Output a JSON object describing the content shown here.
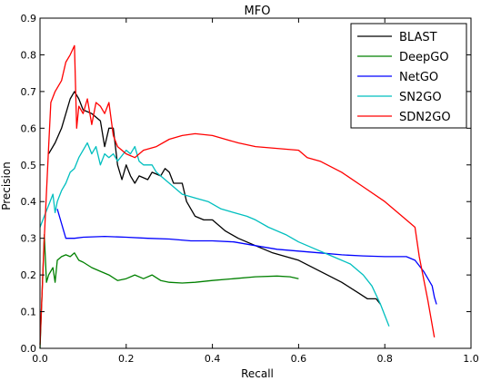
{
  "chart_data": {
    "type": "line",
    "title": "MFO",
    "xlabel": "Recall",
    "ylabel": "Precision",
    "xlim": [
      0.0,
      1.0
    ],
    "ylim": [
      0.0,
      0.9
    ],
    "xticks": [
      "0.0",
      "0.2",
      "0.4",
      "0.6",
      "0.8",
      "1.0"
    ],
    "yticks": [
      "0.0",
      "0.1",
      "0.2",
      "0.3",
      "0.4",
      "0.5",
      "0.6",
      "0.7",
      "0.8",
      "0.9"
    ],
    "grid": false,
    "legend_position": "top-right",
    "series": [
      {
        "name": "BLAST",
        "color": "#000000",
        "points": [
          [
            0.02,
            0.53
          ],
          [
            0.035,
            0.56
          ],
          [
            0.05,
            0.6
          ],
          [
            0.07,
            0.68
          ],
          [
            0.08,
            0.7
          ],
          [
            0.09,
            0.68
          ],
          [
            0.1,
            0.65
          ],
          [
            0.12,
            0.64
          ],
          [
            0.14,
            0.62
          ],
          [
            0.15,
            0.55
          ],
          [
            0.16,
            0.6
          ],
          [
            0.17,
            0.6
          ],
          [
            0.18,
            0.5
          ],
          [
            0.19,
            0.46
          ],
          [
            0.2,
            0.5
          ],
          [
            0.21,
            0.47
          ],
          [
            0.22,
            0.45
          ],
          [
            0.23,
            0.47
          ],
          [
            0.25,
            0.46
          ],
          [
            0.26,
            0.48
          ],
          [
            0.28,
            0.47
          ],
          [
            0.29,
            0.49
          ],
          [
            0.3,
            0.48
          ],
          [
            0.31,
            0.45
          ],
          [
            0.33,
            0.45
          ],
          [
            0.34,
            0.4
          ],
          [
            0.36,
            0.36
          ],
          [
            0.38,
            0.35
          ],
          [
            0.4,
            0.35
          ],
          [
            0.43,
            0.32
          ],
          [
            0.46,
            0.3
          ],
          [
            0.5,
            0.28
          ],
          [
            0.54,
            0.26
          ],
          [
            0.6,
            0.24
          ],
          [
            0.65,
            0.21
          ],
          [
            0.7,
            0.18
          ],
          [
            0.74,
            0.15
          ],
          [
            0.76,
            0.135
          ],
          [
            0.78,
            0.135
          ],
          [
            0.79,
            0.12
          ]
        ]
      },
      {
        "name": "DeepGO",
        "color": "#008000",
        "points": [
          [
            0.0,
            0.0
          ],
          [
            0.01,
            0.31
          ],
          [
            0.015,
            0.18
          ],
          [
            0.02,
            0.2
          ],
          [
            0.03,
            0.22
          ],
          [
            0.035,
            0.18
          ],
          [
            0.04,
            0.24
          ],
          [
            0.05,
            0.25
          ],
          [
            0.06,
            0.255
          ],
          [
            0.07,
            0.25
          ],
          [
            0.08,
            0.26
          ],
          [
            0.09,
            0.24
          ],
          [
            0.1,
            0.235
          ],
          [
            0.12,
            0.22
          ],
          [
            0.14,
            0.21
          ],
          [
            0.16,
            0.2
          ],
          [
            0.18,
            0.185
          ],
          [
            0.2,
            0.19
          ],
          [
            0.22,
            0.2
          ],
          [
            0.24,
            0.19
          ],
          [
            0.26,
            0.2
          ],
          [
            0.28,
            0.185
          ],
          [
            0.3,
            0.18
          ],
          [
            0.33,
            0.178
          ],
          [
            0.36,
            0.18
          ],
          [
            0.4,
            0.185
          ],
          [
            0.45,
            0.19
          ],
          [
            0.5,
            0.195
          ],
          [
            0.55,
            0.197
          ],
          [
            0.58,
            0.195
          ],
          [
            0.6,
            0.19
          ]
        ]
      },
      {
        "name": "NetGO",
        "color": "#0000ff",
        "points": [
          [
            0.04,
            0.38
          ],
          [
            0.05,
            0.34
          ],
          [
            0.06,
            0.3
          ],
          [
            0.08,
            0.3
          ],
          [
            0.1,
            0.303
          ],
          [
            0.15,
            0.305
          ],
          [
            0.2,
            0.303
          ],
          [
            0.25,
            0.3
          ],
          [
            0.3,
            0.298
          ],
          [
            0.35,
            0.293
          ],
          [
            0.4,
            0.293
          ],
          [
            0.45,
            0.29
          ],
          [
            0.5,
            0.28
          ],
          [
            0.55,
            0.27
          ],
          [
            0.6,
            0.265
          ],
          [
            0.65,
            0.26
          ],
          [
            0.7,
            0.255
          ],
          [
            0.75,
            0.252
          ],
          [
            0.8,
            0.25
          ],
          [
            0.85,
            0.25
          ],
          [
            0.87,
            0.24
          ],
          [
            0.89,
            0.21
          ],
          [
            0.91,
            0.17
          ],
          [
            0.915,
            0.14
          ],
          [
            0.92,
            0.12
          ]
        ]
      },
      {
        "name": "SN2GO",
        "color": "#00bfbf",
        "points": [
          [
            0.0,
            0.33
          ],
          [
            0.01,
            0.36
          ],
          [
            0.02,
            0.39
          ],
          [
            0.03,
            0.42
          ],
          [
            0.035,
            0.37
          ],
          [
            0.04,
            0.4
          ],
          [
            0.05,
            0.43
          ],
          [
            0.06,
            0.45
          ],
          [
            0.07,
            0.48
          ],
          [
            0.08,
            0.49
          ],
          [
            0.09,
            0.52
          ],
          [
            0.1,
            0.54
          ],
          [
            0.11,
            0.56
          ],
          [
            0.12,
            0.53
          ],
          [
            0.13,
            0.55
          ],
          [
            0.14,
            0.5
          ],
          [
            0.15,
            0.53
          ],
          [
            0.16,
            0.52
          ],
          [
            0.17,
            0.53
          ],
          [
            0.18,
            0.51
          ],
          [
            0.2,
            0.54
          ],
          [
            0.21,
            0.53
          ],
          [
            0.22,
            0.55
          ],
          [
            0.23,
            0.51
          ],
          [
            0.24,
            0.5
          ],
          [
            0.26,
            0.5
          ],
          [
            0.27,
            0.48
          ],
          [
            0.29,
            0.46
          ],
          [
            0.31,
            0.44
          ],
          [
            0.33,
            0.42
          ],
          [
            0.36,
            0.41
          ],
          [
            0.39,
            0.4
          ],
          [
            0.42,
            0.38
          ],
          [
            0.45,
            0.37
          ],
          [
            0.48,
            0.36
          ],
          [
            0.5,
            0.35
          ],
          [
            0.53,
            0.33
          ],
          [
            0.57,
            0.31
          ],
          [
            0.6,
            0.29
          ],
          [
            0.64,
            0.27
          ],
          [
            0.68,
            0.25
          ],
          [
            0.72,
            0.23
          ],
          [
            0.75,
            0.2
          ],
          [
            0.77,
            0.17
          ],
          [
            0.79,
            0.12
          ],
          [
            0.8,
            0.09
          ],
          [
            0.81,
            0.06
          ]
        ]
      },
      {
        "name": "SDN2GO",
        "color": "#ff0000",
        "points": [
          [
            0.0,
            0.01
          ],
          [
            0.01,
            0.3
          ],
          [
            0.02,
            0.55
          ],
          [
            0.025,
            0.67
          ],
          [
            0.035,
            0.7
          ],
          [
            0.05,
            0.73
          ],
          [
            0.06,
            0.78
          ],
          [
            0.07,
            0.8
          ],
          [
            0.08,
            0.825
          ],
          [
            0.085,
            0.6
          ],
          [
            0.09,
            0.66
          ],
          [
            0.1,
            0.64
          ],
          [
            0.11,
            0.68
          ],
          [
            0.12,
            0.61
          ],
          [
            0.13,
            0.67
          ],
          [
            0.14,
            0.66
          ],
          [
            0.15,
            0.64
          ],
          [
            0.16,
            0.67
          ],
          [
            0.17,
            0.58
          ],
          [
            0.18,
            0.55
          ],
          [
            0.2,
            0.53
          ],
          [
            0.22,
            0.52
          ],
          [
            0.24,
            0.54
          ],
          [
            0.27,
            0.55
          ],
          [
            0.3,
            0.57
          ],
          [
            0.33,
            0.58
          ],
          [
            0.36,
            0.585
          ],
          [
            0.4,
            0.58
          ],
          [
            0.43,
            0.57
          ],
          [
            0.46,
            0.56
          ],
          [
            0.5,
            0.55
          ],
          [
            0.55,
            0.545
          ],
          [
            0.6,
            0.54
          ],
          [
            0.62,
            0.52
          ],
          [
            0.65,
            0.51
          ],
          [
            0.7,
            0.48
          ],
          [
            0.75,
            0.44
          ],
          [
            0.8,
            0.4
          ],
          [
            0.84,
            0.36
          ],
          [
            0.87,
            0.33
          ],
          [
            0.88,
            0.25
          ],
          [
            0.9,
            0.13
          ],
          [
            0.915,
            0.03
          ]
        ]
      }
    ]
  }
}
